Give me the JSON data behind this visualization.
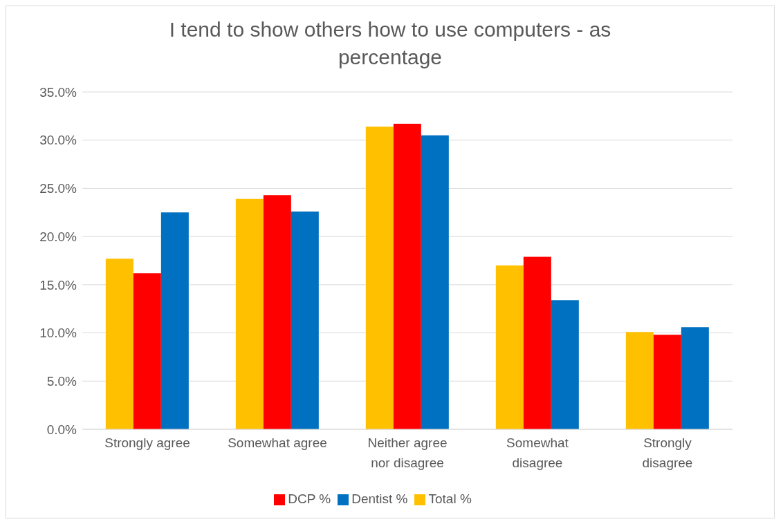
{
  "chart_data": {
    "type": "bar",
    "title": "I tend to show others how to use computers - as percentage",
    "categories": [
      "Strongly agree",
      "Somewhat agree",
      "Neither agree nor disagree",
      "Somewhat disagree",
      "Strongly disagree"
    ],
    "series": [
      {
        "name": "Total %",
        "color": "#ffc000",
        "values": [
          17.7,
          23.9,
          31.4,
          17.0,
          10.1
        ]
      },
      {
        "name": "DCP %",
        "color": "#ff0000",
        "values": [
          16.2,
          24.3,
          31.7,
          17.9,
          9.8
        ]
      },
      {
        "name": "Dentist %",
        "color": "#0070c0",
        "values": [
          22.5,
          22.6,
          30.5,
          13.4,
          10.6
        ]
      }
    ],
    "ylim": [
      0,
      35
    ],
    "yticks": [
      {
        "value": 0,
        "label": "0.0%"
      },
      {
        "value": 5,
        "label": "5.0%"
      },
      {
        "value": 10,
        "label": "10.0%"
      },
      {
        "value": 15,
        "label": "15.0%"
      },
      {
        "value": 20,
        "label": "20.0%"
      },
      {
        "value": 25,
        "label": "25.0%"
      },
      {
        "value": 30,
        "label": "30.0%"
      },
      {
        "value": 35,
        "label": "35.0%"
      }
    ],
    "grid": "y",
    "legend": "bottom"
  }
}
